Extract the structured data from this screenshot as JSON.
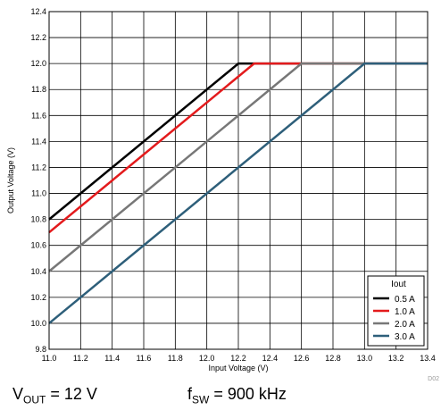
{
  "chart_data": {
    "type": "line",
    "xlabel": "Input Voltage (V)",
    "ylabel": "Output Voltage (V)",
    "xlim": [
      11.0,
      13.4
    ],
    "ylim": [
      9.8,
      12.4
    ],
    "xticks": [
      "11.0",
      "11.2",
      "11.4",
      "11.6",
      "11.8",
      "12.0",
      "12.2",
      "12.4",
      "12.6",
      "12.8",
      "13.0",
      "13.2",
      "13.4"
    ],
    "yticks": [
      "9.8",
      "10.0",
      "10.2",
      "10.4",
      "10.6",
      "10.8",
      "11.0",
      "11.2",
      "11.4",
      "11.6",
      "11.8",
      "12.0",
      "12.2",
      "12.4"
    ],
    "grid": true,
    "legend_title": "Iout",
    "legend_position": "bottom-right",
    "series": [
      {
        "name": "0.5 A",
        "color": "#000000",
        "x": [
          11.0,
          12.2,
          13.4
        ],
        "y": [
          10.8,
          12.0,
          12.0
        ]
      },
      {
        "name": "1.0 A",
        "color": "#e31a1c",
        "x": [
          11.0,
          12.3,
          13.4
        ],
        "y": [
          10.7,
          12.0,
          12.0
        ]
      },
      {
        "name": "2.0 A",
        "color": "#777777",
        "x": [
          11.0,
          12.6,
          13.4
        ],
        "y": [
          10.4,
          12.0,
          12.0
        ]
      },
      {
        "name": "3.0 A",
        "color": "#2e5f7a",
        "x": [
          11.0,
          13.0,
          13.4
        ],
        "y": [
          10.0,
          12.0,
          12.0
        ]
      }
    ]
  },
  "figure_id": "D02",
  "caption": {
    "vout_label": "V",
    "vout_sub": "OUT",
    "vout_value": " = 12 V",
    "fsw_label": "f",
    "fsw_sub": "SW",
    "fsw_value": " = 900 kHz"
  }
}
